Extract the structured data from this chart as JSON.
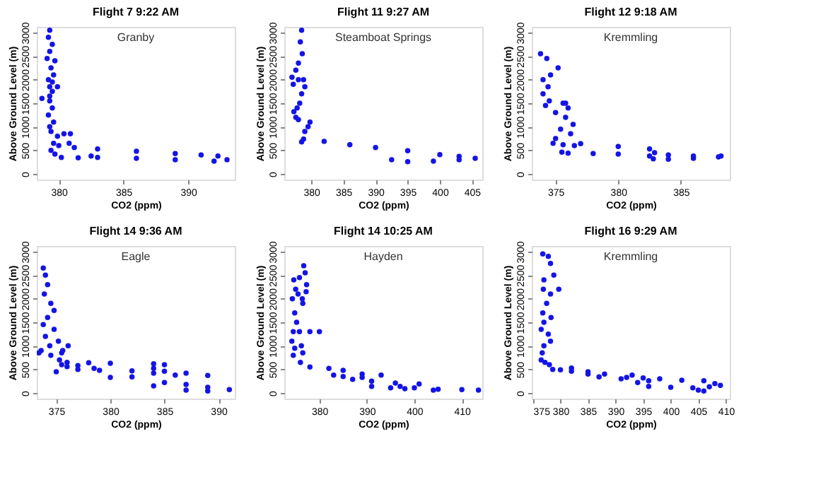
{
  "chart_data": [
    {
      "type": "scatter",
      "title": "Flight 7    9:22 AM",
      "xlabel": "CO2 (ppm)",
      "ylabel": "Above Ground Level (m)",
      "annotations": [
        "Granby"
      ],
      "xlim": [
        378.3,
        393.6
      ],
      "ylim": [
        -120,
        3120
      ],
      "xticks": [
        380,
        385,
        390
      ],
      "yticks": [
        0,
        500,
        1000,
        1500,
        2000,
        2500,
        3000
      ],
      "grid": false,
      "marker": "circle",
      "series": [
        {
          "color": "#1414e6",
          "x": [
            379.3,
            379.2,
            379.5,
            379.3,
            379.1,
            379.7,
            379.4,
            379.6,
            379.2,
            379.5,
            379.3,
            379.9,
            379.5,
            379.3,
            378.7,
            379.3,
            379.5,
            379.2,
            379.6,
            379.3,
            379.4,
            379.9,
            379.6,
            380.0,
            380.4,
            380.9,
            380.8,
            381.2,
            383.0,
            386.0,
            389.0,
            391.0,
            392.3,
            393.0,
            392.0,
            389.0,
            386.0,
            383.0,
            382.5,
            381.5,
            380.2,
            379.7,
            379.4
          ],
          "values": [
            3050,
            2900,
            2750,
            2600,
            2450,
            2400,
            2250,
            2100,
            2000,
            1950,
            1850,
            1850,
            1750,
            1650,
            1600,
            1550,
            1400,
            1250,
            1100,
            1000,
            900,
            800,
            650,
            600,
            850,
            850,
            650,
            560,
            530,
            480,
            430,
            400,
            380,
            300,
            270,
            300,
            330,
            350,
            380,
            340,
            350,
            420,
            500
          ]
        }
      ]
    },
    {
      "type": "scatter",
      "title": "Flight 11    9:27 AM",
      "xlabel": "CO2 (ppm)",
      "ylabel": "Above Ground Level (m)",
      "annotations": [
        "Steamboat Springs"
      ],
      "xlim": [
        375.8,
        406.6
      ],
      "ylim": [
        -120,
        3120
      ],
      "xticks": [
        380,
        385,
        390,
        395,
        400,
        405
      ],
      "yticks": [
        0,
        500,
        1000,
        1500,
        2000,
        2500,
        3000
      ],
      "grid": false,
      "marker": "circle",
      "series": [
        {
          "color": "#1414e6",
          "x": [
            378.5,
            378.3,
            378.6,
            378.0,
            377.6,
            377.0,
            377.2,
            378.0,
            378.8,
            379.0,
            378.5,
            378.2,
            377.8,
            377.3,
            377.6,
            378.0,
            379.5,
            379.8,
            379.0,
            378.5,
            378.8,
            382.0,
            386.0,
            390.0,
            395.0,
            400.0,
            403.0,
            405.5,
            403.0,
            399.0,
            395.0,
            392.5
          ],
          "values": [
            3050,
            2800,
            2550,
            2350,
            2200,
            2050,
            1900,
            2000,
            2000,
            1850,
            1700,
            1500,
            1400,
            1320,
            1200,
            1150,
            1000,
            1100,
            900,
            680,
            740,
            690,
            620,
            560,
            490,
            410,
            370,
            330,
            300,
            270,
            260,
            300
          ]
        }
      ]
    },
    {
      "type": "scatter",
      "title": "Flight 12    9:18 AM",
      "xlabel": "CO2 (ppm)",
      "ylabel": "Above Ground Level (m)",
      "annotations": [
        "Kremmling"
      ],
      "xlim": [
        373.1,
        388.9
      ],
      "ylim": [
        -120,
        3120
      ],
      "xticks": [
        375,
        380,
        385
      ],
      "yticks": [
        0,
        500,
        1000,
        1500,
        2000,
        2500,
        3000
      ],
      "grid": false,
      "marker": "circle",
      "series": [
        {
          "color": "#1414e6",
          "x": [
            373.8,
            374.3,
            375.2,
            374.6,
            374.0,
            374.4,
            374.0,
            374.5,
            374.2,
            375.0,
            375.6,
            376.0,
            375.8,
            376.4,
            375.4,
            376.2,
            375.0,
            374.8,
            375.6,
            376.5,
            377.0,
            380.0,
            382.5,
            382.9,
            384.0,
            386.0,
            388.0,
            388.2,
            386.0,
            384.0,
            382.8,
            382.5,
            380.0,
            378.0,
            376.0,
            375.5,
            375.8
          ],
          "values": [
            2550,
            2450,
            2250,
            2100,
            2000,
            1850,
            1700,
            1550,
            1450,
            1300,
            1500,
            1400,
            1200,
            1050,
            950,
            850,
            750,
            650,
            620,
            600,
            640,
            580,
            530,
            450,
            400,
            380,
            360,
            380,
            330,
            310,
            320,
            380,
            420,
            430,
            440,
            460,
            1500
          ]
        }
      ]
    },
    {
      "type": "scatter",
      "title": "Flight 14    9:36 AM",
      "xlabel": "CO2 (ppm)",
      "ylabel": "Above Ground Level (m)",
      "annotations": [
        "Eagle"
      ],
      "xlim": [
        373.2,
        391.5
      ],
      "ylim": [
        -120,
        3120
      ],
      "xticks": [
        375,
        380,
        385,
        390
      ],
      "yticks": [
        0,
        500,
        1000,
        1500,
        2000,
        2500,
        3000
      ],
      "grid": false,
      "marker": "circle",
      "series": [
        {
          "color": "#1414e6",
          "x": [
            373.8,
            374.0,
            374.2,
            373.9,
            374.5,
            374.8,
            374.2,
            373.8,
            374.8,
            374.0,
            375.2,
            374.4,
            373.6,
            373.4,
            374.5,
            375.3,
            375.6,
            376.1,
            375.5,
            376.0,
            378.0,
            380.0,
            384.0,
            385.0,
            384.0,
            385.0,
            387.0,
            389.0,
            386.0,
            384.0,
            382.0,
            378.5,
            377.0,
            375.5,
            376.0,
            379.0,
            382.0,
            385.0,
            387.0,
            389.0,
            391.0,
            389.0,
            387.0,
            384.0,
            380.0,
            377.0,
            375.0
          ],
          "values": [
            2650,
            2500,
            2300,
            2100,
            1900,
            1750,
            1600,
            1450,
            1350,
            1200,
            1100,
            1000,
            900,
            850,
            800,
            700,
            900,
            1000,
            850,
            650,
            640,
            630,
            620,
            600,
            520,
            460,
            420,
            370,
            380,
            420,
            470,
            520,
            580,
            600,
            560,
            480,
            340,
            220,
            180,
            120,
            70,
            40,
            60,
            150,
            330,
            500,
            450
          ]
        }
      ]
    },
    {
      "type": "scatter",
      "title": "Flight 14    10:25 AM",
      "xlabel": "CO2 (ppm)",
      "ylabel": "Above Ground Level (m)",
      "annotations": [
        "Hayden"
      ],
      "xlim": [
        372.6,
        414.3
      ],
      "ylim": [
        -120,
        3120
      ],
      "xticks": [
        380,
        390,
        400,
        410
      ],
      "yticks": [
        0,
        500,
        1000,
        1500,
        2000,
        2500,
        3000
      ],
      "grid": false,
      "marker": "circle",
      "series": [
        {
          "color": "#1414e6",
          "x": [
            376.7,
            377.0,
            377.3,
            375.8,
            374.6,
            375.0,
            374.3,
            375.5,
            376.4,
            377.2,
            376.5,
            374.8,
            375.2,
            374.5,
            374.2,
            374.8,
            376.2,
            375.8,
            378.0,
            380.0,
            376.5,
            374.5,
            376.0,
            378.0,
            382.0,
            385.0,
            389.0,
            393.0,
            389.0,
            385.0,
            383.0,
            387.0,
            391.0,
            396.0,
            401.0,
            397.0,
            391.0,
            395.0,
            400.0,
            405.0,
            410.0,
            413.5,
            404.0,
            398.0
          ],
          "values": [
            2700,
            2550,
            2300,
            2450,
            2400,
            2200,
            2000,
            2100,
            2000,
            2150,
            1900,
            1700,
            1500,
            1300,
            1100,
            950,
            1000,
            1300,
            1300,
            1300,
            850,
            800,
            650,
            550,
            520,
            480,
            400,
            380,
            330,
            350,
            380,
            290,
            250,
            210,
            190,
            140,
            140,
            110,
            110,
            80,
            70,
            60,
            60,
            90
          ]
        }
      ]
    },
    {
      "type": "scatter",
      "title": "Flight 16    9:29 AM",
      "xlabel": "CO2 (ppm)",
      "ylabel": "Above Ground Level (m)",
      "annotations": [
        "Kremmling"
      ],
      "xlim": [
        374.8,
        410.7
      ],
      "ylim": [
        -120,
        3120
      ],
      "xticks": [
        375,
        380,
        385,
        390,
        395,
        400,
        405,
        410
      ],
      "yticks": [
        0,
        500,
        1000,
        1500,
        2000,
        2500,
        3000
      ],
      "grid": false,
      "marker": "circle",
      "series": [
        {
          "color": "#1414e6",
          "x": [
            376.8,
            377.8,
            378.2,
            378.8,
            377.0,
            376.9,
            378.2,
            379.7,
            377.5,
            376.8,
            378.3,
            377.0,
            376.5,
            377.8,
            378.2,
            377.0,
            376.7,
            376.5,
            377.2,
            378.0,
            378.6,
            380.0,
            382.0,
            385.0,
            388.0,
            385.0,
            382.0,
            387.0,
            391.0,
            393.0,
            395.0,
            398.0,
            402.0,
            406.0,
            408.0,
            409.0,
            407.0,
            405.0,
            406.0,
            404.0,
            400.0,
            396.0,
            394.0,
            396.0,
            392.0
          ],
          "values": [
            2950,
            2900,
            2750,
            2500,
            2400,
            2200,
            2100,
            2200,
            1900,
            1700,
            1600,
            1500,
            1350,
            1250,
            1100,
            1000,
            850,
            700,
            650,
            600,
            500,
            490,
            530,
            450,
            400,
            400,
            460,
            340,
            300,
            380,
            320,
            300,
            270,
            260,
            200,
            160,
            130,
            60,
            40,
            110,
            120,
            140,
            220,
            260,
            330
          ]
        }
      ]
    }
  ]
}
